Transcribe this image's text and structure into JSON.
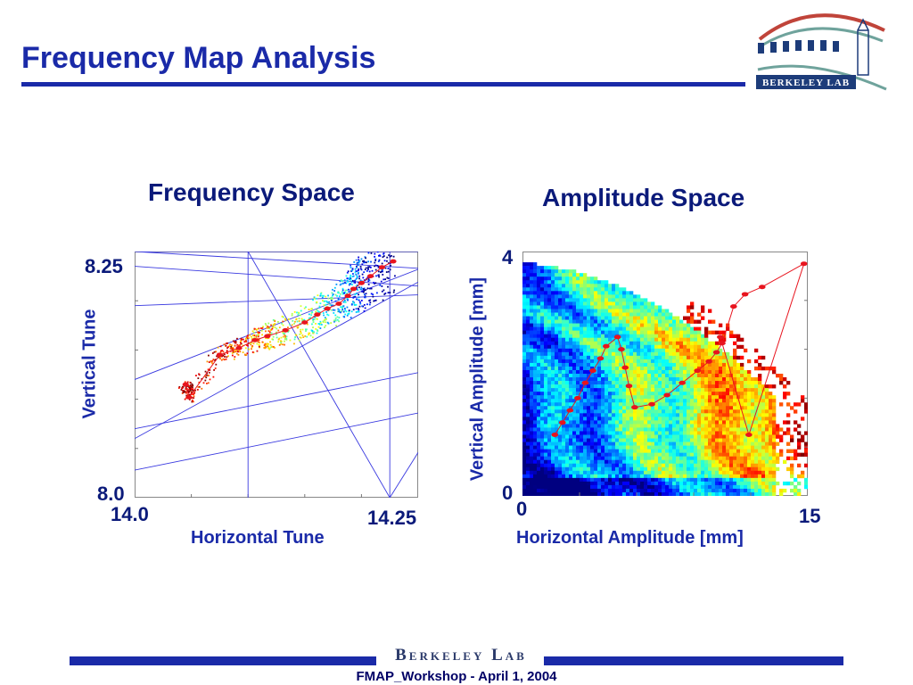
{
  "slide": {
    "title": "Frequency Map Analysis",
    "footer_lab": "Berkeley Lab",
    "footer_caption": "FMAP_Workshop - April 1, 2004",
    "logo": {
      "icon": "berkeley-lab-logo",
      "text": "Berkeley Lab"
    },
    "colors": {
      "title": "#1a2aa8",
      "rule": "#1a2aa8",
      "orbit": "#e8141e"
    }
  },
  "chart_data": [
    {
      "type": "scatter",
      "title": "Frequency Space",
      "xlabel": "Horizontal Tune",
      "ylabel": "Vertical Tune",
      "xlim": [
        14.0,
        14.25
      ],
      "ylim": [
        8.0,
        8.25
      ],
      "x_tick_labels": [
        "14.0",
        "14.25"
      ],
      "y_tick_labels": [
        "8.25",
        "8.0"
      ],
      "colormap": "jet (diffusion rate)",
      "resonance_lines": [
        {
          "x1": 14.0,
          "y1": 8.25,
          "x2": 14.25,
          "y2": 8.233
        },
        {
          "x1": 14.0,
          "y1": 8.25,
          "x2": 14.25,
          "y2": 8.25
        },
        {
          "x1": 14.0,
          "y1": 8.195,
          "x2": 14.25,
          "y2": 8.206
        },
        {
          "x1": 14.0,
          "y1": 8.07,
          "x2": 14.25,
          "y2": 8.127
        },
        {
          "x1": 14.0,
          "y1": 8.028,
          "x2": 14.25,
          "y2": 8.086
        },
        {
          "x1": 14.0,
          "y1": 8.12,
          "x2": 14.25,
          "y2": 8.232
        },
        {
          "x1": 14.0,
          "y1": 8.06,
          "x2": 14.25,
          "y2": 8.219
        },
        {
          "x1": 14.0,
          "y1": 8.235,
          "x2": 14.25,
          "y2": 8.215
        },
        {
          "x1": 14.1,
          "y1": 8.0,
          "x2": 14.1,
          "y2": 8.25
        },
        {
          "x1": 14.225,
          "y1": 8.0,
          "x2": 14.225,
          "y2": 8.25
        },
        {
          "x1": 14.1,
          "y1": 8.25,
          "x2": 14.225,
          "y2": 8.0
        },
        {
          "x1": 14.225,
          "y1": 8.0,
          "x2": 14.25,
          "y2": 8.046
        }
      ],
      "orbit_points": [
        {
          "x": 14.045,
          "y": 8.115
        },
        {
          "x": 14.048,
          "y": 8.102
        },
        {
          "x": 14.075,
          "y": 8.145
        },
        {
          "x": 14.092,
          "y": 8.152
        },
        {
          "x": 14.106,
          "y": 8.16
        },
        {
          "x": 14.117,
          "y": 8.164
        },
        {
          "x": 14.133,
          "y": 8.17
        },
        {
          "x": 14.15,
          "y": 8.178
        },
        {
          "x": 14.161,
          "y": 8.186
        },
        {
          "x": 14.17,
          "y": 8.192
        },
        {
          "x": 14.18,
          "y": 8.197
        },
        {
          "x": 14.188,
          "y": 8.205
        },
        {
          "x": 14.193,
          "y": 8.212
        },
        {
          "x": 14.2,
          "y": 8.218
        },
        {
          "x": 14.208,
          "y": 8.225
        },
        {
          "x": 14.218,
          "y": 8.234
        },
        {
          "x": 14.228,
          "y": 8.24
        }
      ]
    },
    {
      "type": "heatmap",
      "title": "Amplitude Space",
      "xlabel": "Horizontal Amplitude [mm]",
      "ylabel": "Vertical Amplitude [mm]",
      "xlim": [
        0,
        15
      ],
      "ylim": [
        0,
        4
      ],
      "x_tick_labels": [
        "0",
        "15"
      ],
      "y_tick_labels": [
        "4",
        "0"
      ],
      "colormap": "jet (diffusion rate)",
      "orbit_points": [
        {
          "x": 1.7,
          "y": 1.0
        },
        {
          "x": 2.1,
          "y": 1.2
        },
        {
          "x": 2.5,
          "y": 1.4
        },
        {
          "x": 2.9,
          "y": 1.6
        },
        {
          "x": 3.3,
          "y": 1.85
        },
        {
          "x": 3.7,
          "y": 2.05
        },
        {
          "x": 4.1,
          "y": 2.25
        },
        {
          "x": 4.4,
          "y": 2.45
        },
        {
          "x": 5.0,
          "y": 2.6
        },
        {
          "x": 5.2,
          "y": 2.4
        },
        {
          "x": 5.4,
          "y": 2.1
        },
        {
          "x": 5.6,
          "y": 1.8
        },
        {
          "x": 5.9,
          "y": 1.45
        },
        {
          "x": 6.8,
          "y": 1.5
        },
        {
          "x": 7.6,
          "y": 1.65
        },
        {
          "x": 8.4,
          "y": 1.85
        },
        {
          "x": 9.2,
          "y": 2.05
        },
        {
          "x": 9.8,
          "y": 2.2
        },
        {
          "x": 10.2,
          "y": 2.35
        },
        {
          "x": 10.5,
          "y": 2.5
        },
        {
          "x": 11.1,
          "y": 3.1
        },
        {
          "x": 11.7,
          "y": 3.3
        },
        {
          "x": 12.6,
          "y": 3.42
        },
        {
          "x": 14.8,
          "y": 3.8
        },
        {
          "x": 11.9,
          "y": 1.0
        },
        {
          "x": 10.4,
          "y": 2.6
        }
      ]
    }
  ]
}
